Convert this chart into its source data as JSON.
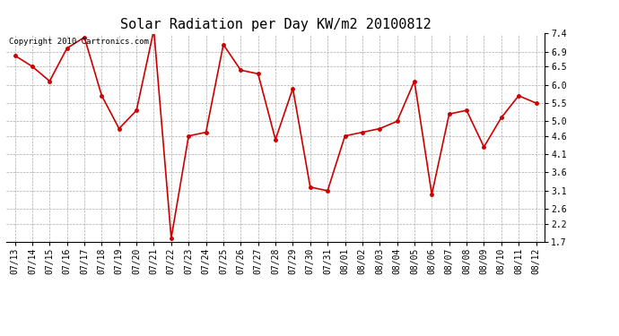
{
  "title": "Solar Radiation per Day KW/m2 20100812",
  "copyright_text": "Copyright 2010 Cartronics.com",
  "labels": [
    "07/13",
    "07/14",
    "07/15",
    "07/16",
    "07/17",
    "07/18",
    "07/19",
    "07/20",
    "07/21",
    "07/22",
    "07/23",
    "07/24",
    "07/25",
    "07/26",
    "07/27",
    "07/28",
    "07/29",
    "07/30",
    "07/31",
    "08/01",
    "08/02",
    "08/03",
    "08/04",
    "08/05",
    "08/06",
    "08/07",
    "08/08",
    "08/09",
    "08/10",
    "08/11",
    "08/12"
  ],
  "values": [
    6.8,
    6.5,
    6.1,
    7.0,
    7.3,
    5.7,
    4.8,
    5.3,
    7.5,
    1.8,
    4.6,
    4.7,
    7.1,
    6.4,
    6.3,
    4.5,
    5.9,
    3.2,
    3.1,
    4.6,
    4.7,
    4.8,
    5.0,
    6.1,
    3.0,
    5.2,
    5.3,
    4.3,
    5.1,
    5.7,
    5.5
  ],
  "line_color": "#cc0000",
  "marker_color": "#cc0000",
  "bg_color": "#ffffff",
  "grid_color": "#aaaaaa",
  "yticks": [
    1.7,
    2.2,
    2.6,
    3.1,
    3.6,
    4.1,
    4.6,
    5.0,
    5.5,
    6.0,
    6.5,
    6.9,
    7.4
  ],
  "ylim": [
    1.7,
    7.4
  ],
  "title_fontsize": 11,
  "tick_fontsize": 7,
  "copyright_fontsize": 6.5
}
